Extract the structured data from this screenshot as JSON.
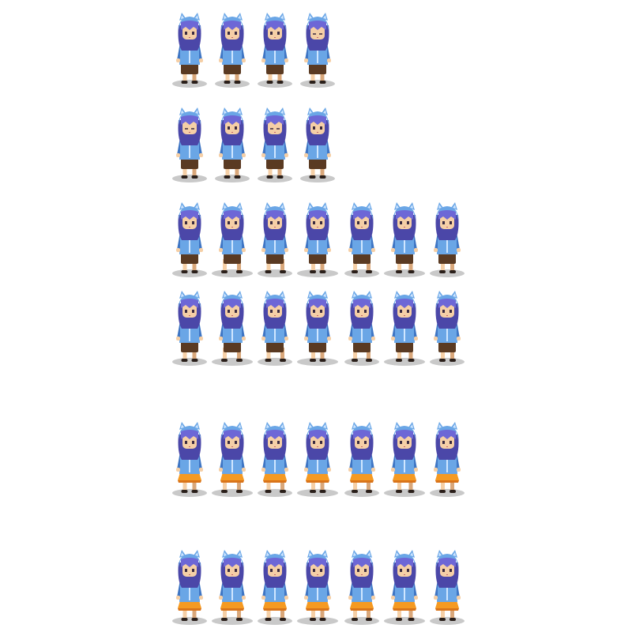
{
  "sheet": {
    "background": "#ffffff",
    "palette": {
      "hair": "#6d67d6",
      "hair_dark": "#4b47a8",
      "hood": "#6aa6e6",
      "hood_dark": "#3f76c4",
      "hood_light": "#cfe6ff",
      "skin": "#f5cfa6",
      "skin_dark": "#d9a77a",
      "shorts_brown": "#5a3a22",
      "skirt_orange": "#f59a22",
      "skirt_orange_dark": "#d9741a",
      "shoe": "#2a1f1a",
      "shadow": "#c9c9c9"
    },
    "rows": [
      {
        "name": "idle-row-1",
        "bottoms": "shorts",
        "frames": [
          "idle-a",
          "idle-b",
          "idle-c",
          "idle-d"
        ]
      },
      {
        "name": "idle-row-2",
        "bottoms": "shorts",
        "frames": [
          "idle-a",
          "idle-b",
          "idle-c",
          "idle-d"
        ]
      },
      {
        "name": "walk-row-1",
        "bottoms": "shorts",
        "frames": [
          "walk-1",
          "walk-2",
          "walk-3",
          "walk-4",
          "walk-5",
          "walk-6",
          "walk-7"
        ]
      },
      {
        "name": "walk-row-2",
        "bottoms": "shorts",
        "frames": [
          "walk-1",
          "walk-2",
          "walk-3",
          "walk-4",
          "walk-5",
          "walk-6",
          "walk-7"
        ]
      },
      {
        "name": "walk-row-3",
        "bottoms": "skirt",
        "frames": [
          "walk-1",
          "walk-2",
          "walk-3",
          "walk-4",
          "walk-5",
          "walk-6",
          "walk-7"
        ]
      },
      {
        "name": "walk-row-4",
        "bottoms": "skirt",
        "frames": [
          "walk-1",
          "walk-2",
          "walk-3",
          "walk-4",
          "walk-5",
          "walk-6",
          "walk-7"
        ]
      }
    ]
  }
}
